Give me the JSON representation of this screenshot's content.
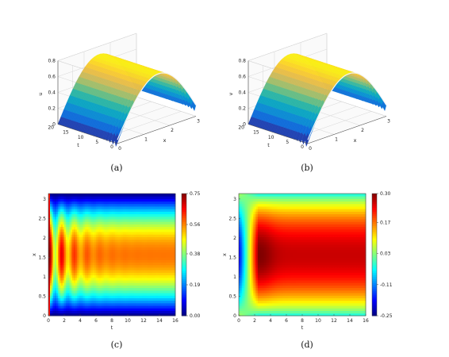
{
  "captions": [
    "(a)",
    "(b)",
    "(c)",
    "(d)"
  ],
  "colors": {
    "colormap": "jet",
    "background": "#ffffff",
    "axis": "#555555"
  },
  "chart_data": [
    {
      "type": "surface",
      "caption": "(a)",
      "xlabel": "x",
      "ylabel": "t",
      "zlabel": "u",
      "xlim": [
        0,
        3
      ],
      "ylim": [
        0,
        20
      ],
      "zlim": [
        0,
        0.8
      ],
      "xticks": [
        "0",
        "1",
        "2",
        "3"
      ],
      "yticks": [
        "0",
        "5",
        "10",
        "15",
        "20"
      ],
      "zticks": [
        "0",
        "0.2",
        "0.4",
        "0.6",
        "0.8"
      ],
      "profile_x": [
        0,
        0.5,
        1.0,
        1.5,
        2.0,
        2.5,
        3.0
      ],
      "u_profile_t0": [
        0.05,
        0.35,
        0.6,
        0.7,
        0.62,
        0.4,
        0.1
      ],
      "u_profile_t_end": [
        0.0,
        0.35,
        0.6,
        0.7,
        0.6,
        0.35,
        0.0
      ]
    },
    {
      "type": "surface",
      "caption": "(b)",
      "xlabel": "x",
      "ylabel": "t",
      "zlabel": "v",
      "xlim": [
        0,
        3
      ],
      "ylim": [
        0,
        20
      ],
      "zlim": [
        0,
        0.8
      ],
      "xticks": [
        "0",
        "1",
        "2",
        "3"
      ],
      "yticks": [
        "0",
        "5",
        "10",
        "15",
        "20"
      ],
      "zticks": [
        "0",
        "0.2",
        "0.4",
        "0.6",
        "0.8"
      ],
      "profile_x": [
        0,
        0.5,
        1.0,
        1.5,
        2.0,
        2.5,
        3.0
      ],
      "v_profile_t0": [
        0.05,
        0.35,
        0.6,
        0.7,
        0.62,
        0.4,
        0.1
      ],
      "v_profile_t_end": [
        0.0,
        0.35,
        0.6,
        0.7,
        0.6,
        0.35,
        0.0
      ]
    },
    {
      "type": "heatmap",
      "caption": "(c)",
      "xlabel": "t",
      "ylabel": "x",
      "xlim": [
        0,
        16
      ],
      "ylim": [
        0,
        3.14
      ],
      "xticks": [
        "0",
        "2",
        "4",
        "6",
        "8",
        "10",
        "12",
        "14",
        "16"
      ],
      "yticks": [
        "0",
        "0.5",
        "1",
        "1.5",
        "2",
        "2.5",
        "3"
      ],
      "colorbar": {
        "min": 0.0,
        "max": 0.75,
        "ticks": [
          "0.75",
          "0.56",
          "0.38",
          "0.19",
          "0.00"
        ]
      },
      "steady_center_value": 0.56,
      "peak_value": 0.75,
      "peak_t": 1.0
    },
    {
      "type": "heatmap",
      "caption": "(d)",
      "xlabel": "t",
      "ylabel": "x",
      "xlim": [
        0,
        16
      ],
      "ylim": [
        0,
        3.14
      ],
      "xticks": [
        "0",
        "2",
        "4",
        "6",
        "8",
        "10",
        "12",
        "14",
        "16"
      ],
      "yticks": [
        "0",
        "0.5",
        "1",
        "1.5",
        "2",
        "2.5",
        "3"
      ],
      "colorbar": {
        "min": -0.25,
        "max": 0.3,
        "ticks": [
          "0.30",
          "0.17",
          "0.03",
          "-0.11",
          "-0.25"
        ]
      },
      "steady_center_value": 0.26,
      "min_value": -0.25,
      "min_t": 0.0
    }
  ]
}
